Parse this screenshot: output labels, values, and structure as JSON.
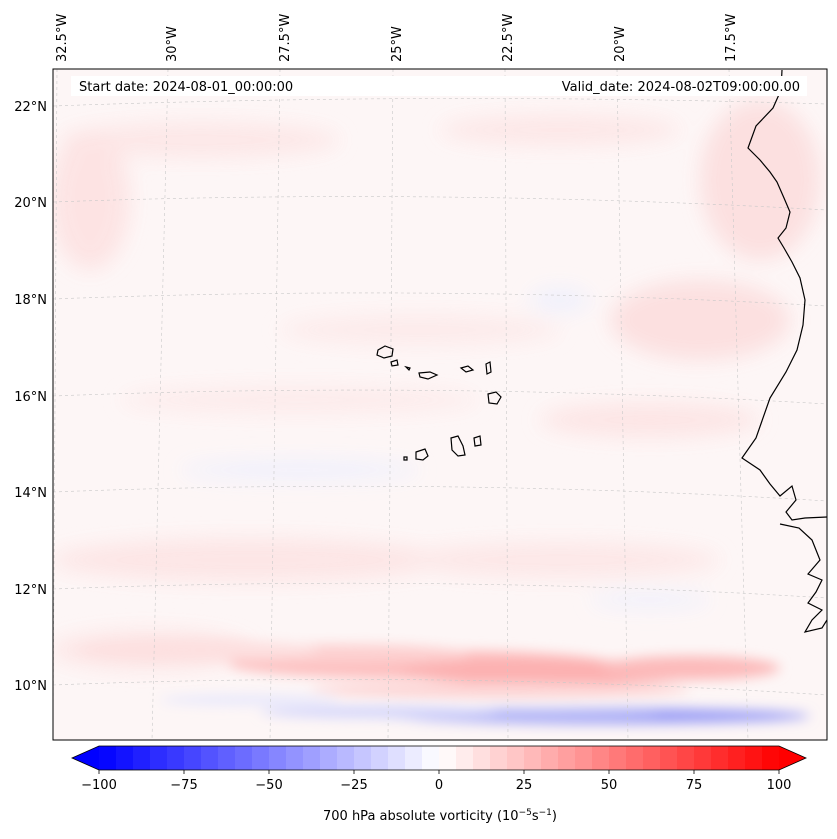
{
  "header": {
    "start_date": "Start date: 2024-08-01_00:00:00",
    "valid_date": "Valid_date: 2024-08-02T09:00:00.00"
  },
  "longitude_labels": [
    "32.5°W",
    "30°W",
    "27.5°W",
    "25°W",
    "22.5°W",
    "20°W",
    "17.5°W"
  ],
  "latitude_labels": [
    "22°N",
    "20°N",
    "18°N",
    "16°N",
    "14°N",
    "12°N",
    "10°N"
  ],
  "colorbar": {
    "title": "700 hPa absolute vorticity (10",
    "title_exp1": "−5",
    "title_mid": "s",
    "title_exp2": "−1",
    "title_end": ")",
    "tick_labels": [
      "−100",
      "−75",
      "−50",
      "−25",
      "0",
      "25",
      "50",
      "75",
      "100"
    ],
    "min": -100,
    "max": 100,
    "colors": {
      "negative": "#0000ff",
      "zero": "#ffffff",
      "positive": "#ff0000"
    }
  },
  "colors": {
    "coastline": "#000000",
    "gridline": "#c8c8c8"
  }
}
